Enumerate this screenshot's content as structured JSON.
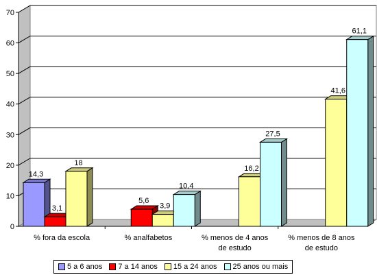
{
  "chart_data": {
    "type": "bar",
    "categories": [
      "% fora da escola",
      "% analfabetos",
      "% menos de 4 anos de estudo",
      "% menos de 8 anos de estudo"
    ],
    "category_lines": [
      [
        "% fora da escola"
      ],
      [
        "% analfabetos"
      ],
      [
        "% menos de 4 anos",
        "de estudo"
      ],
      [
        "% menos de 8 anos",
        "de estudo"
      ]
    ],
    "series": [
      {
        "name": "5 a 6 anos",
        "color": "#9999ff",
        "values": [
          14.3,
          null,
          null,
          null
        ],
        "labels": [
          "14,3",
          "",
          "",
          ""
        ]
      },
      {
        "name": "7 a 14 anos",
        "color": "#ff0000",
        "values": [
          3.1,
          5.6,
          null,
          null
        ],
        "labels": [
          "3,1",
          "5,6",
          "",
          ""
        ]
      },
      {
        "name": "15 a 24 anos",
        "color": "#ffff99",
        "values": [
          18,
          3.9,
          16.2,
          41.6
        ],
        "labels": [
          "18",
          "3,9",
          "16,2",
          "41,6"
        ]
      },
      {
        "name": "25 anos ou mais",
        "color": "#ccffff",
        "values": [
          null,
          10.4,
          27.5,
          61.1
        ],
        "labels": [
          "",
          "10,4",
          "27,5",
          "61,1"
        ]
      }
    ],
    "y_ticks": [
      "0",
      "10",
      "20",
      "30",
      "40",
      "50",
      "60",
      "70"
    ],
    "ylim": [
      0,
      70
    ],
    "grid": true,
    "legend_position": "bottom",
    "style": "3d-column"
  }
}
